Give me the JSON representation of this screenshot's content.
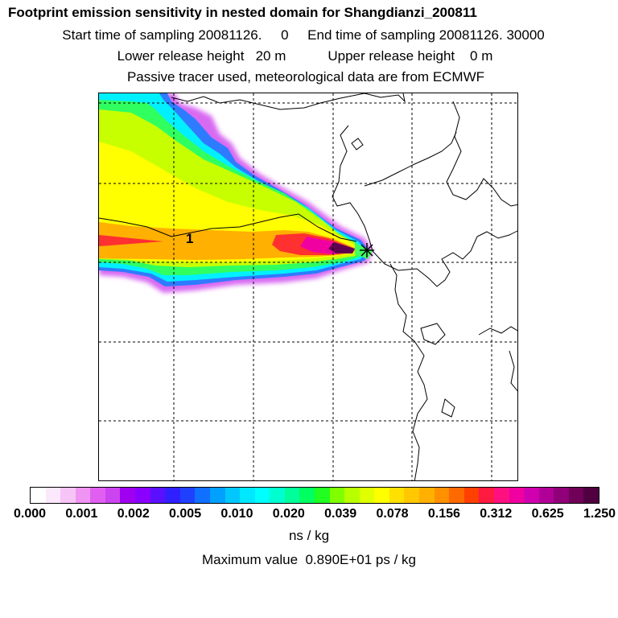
{
  "title": "Footprint emission sensitivity in nested domain for Shangdianzi_200811",
  "sampling_line": "Start time of sampling 20081126.     0     End time of sampling 20081126. 30000",
  "release_line": "Lower release height   20 m           Upper release height    0 m",
  "info_line": "Passive tracer used, meteorological data are from ECMWF",
  "map": {
    "contour_label": "1",
    "receptor_marker": "receptor-cross"
  },
  "colorbar": {
    "tick_labels": [
      "0.000",
      "0.001",
      "0.002",
      "0.005",
      "0.010",
      "0.020",
      "0.039",
      "0.078",
      "0.156",
      "0.312",
      "0.625",
      "1.250"
    ],
    "colors": [
      "#ffffff",
      "#fce8fc",
      "#f7c4f7",
      "#ef94f3",
      "#e05ff0",
      "#cc44f0",
      "#a000f0",
      "#8a00ff",
      "#5a10ff",
      "#3020ff",
      "#2040ff",
      "#1070ff",
      "#00a0ff",
      "#00c8ff",
      "#00e8ff",
      "#00ffff",
      "#00ffd0",
      "#00ff9a",
      "#00ff60",
      "#20ff20",
      "#80ff00",
      "#b8ff00",
      "#e0ff00",
      "#ffff00",
      "#ffe000",
      "#ffc800",
      "#ffb000",
      "#ff9000",
      "#ff6a00",
      "#ff4000",
      "#ff1a40",
      "#ff1080",
      "#f000a0",
      "#d000b0",
      "#b00098",
      "#900078",
      "#700058",
      "#500040"
    ],
    "unit": "ns / kg"
  },
  "max_value_line": "Maximum value  0.890E+01 ps / kg"
}
